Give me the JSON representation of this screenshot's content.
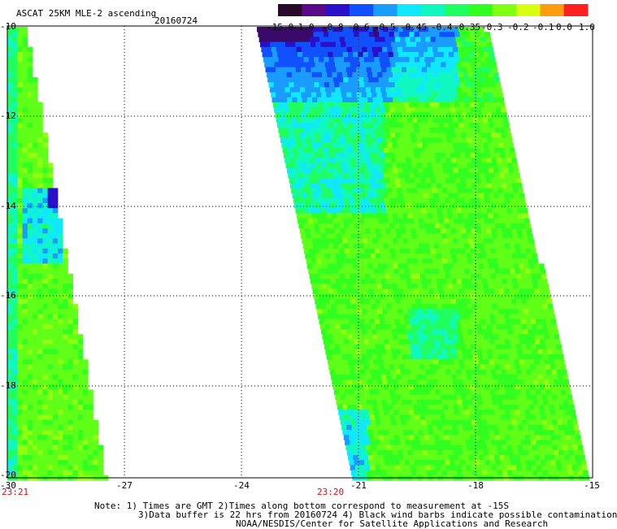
{
  "header": {
    "title": "ASCAT 25KM MLE-2 ascending",
    "date": "20160724"
  },
  "colorbar": {
    "labels": [
      "-15.0",
      "-1.0",
      "-0.8",
      "-0.6",
      "-0.5",
      "-0.45",
      "-0.4",
      "-0.35",
      "-0.3",
      "-0.2",
      "-0.1",
      "0.0",
      "1.0"
    ],
    "colors": [
      "#2a0a2a",
      "#5a0a88",
      "#2a10c8",
      "#1050ff",
      "#1a9cff",
      "#10e8ff",
      "#10f8c0",
      "#20ff60",
      "#30ff20",
      "#80ff10",
      "#d8ff10",
      "#ff9c10",
      "#ff2020"
    ]
  },
  "axes": {
    "y_labels": [
      "-10",
      "-12",
      "-14",
      "-16",
      "-18",
      "-20"
    ],
    "x_labels": [
      "-30",
      "-27",
      "-24",
      "-21",
      "-18",
      "-15"
    ],
    "times": [
      "23:21",
      "23:20"
    ]
  },
  "notes": [
    "Note: 1) Times are GMT 2)Times along bottom correspond to measurement at -15S",
    "3)Data buffer is 22 hrs from 20160724 4) Black wind barbs indicate possible contamination",
    "NOAA/NESDIS/Center for Satellite Applications and Research"
  ]
}
